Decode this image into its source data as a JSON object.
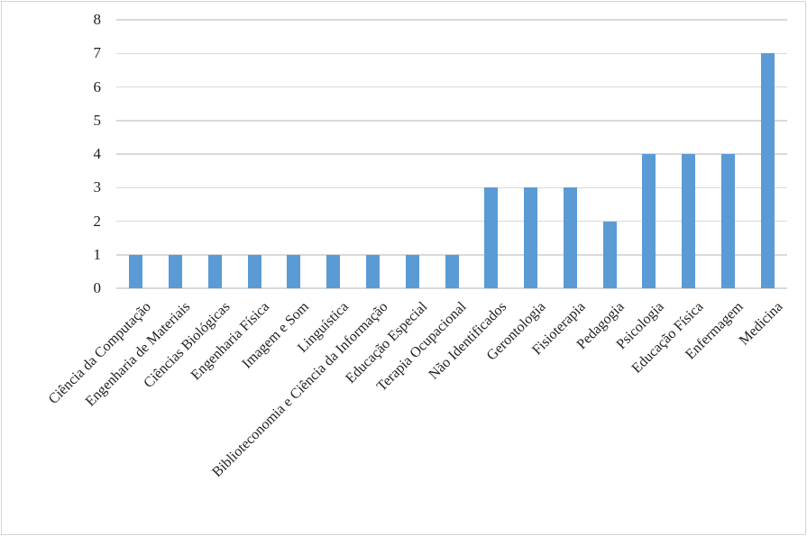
{
  "chart_data": {
    "type": "bar",
    "categories": [
      "Ciência da Computação",
      "Engenharia de Materiais",
      "Ciências Biológicas",
      "Engenharia Física",
      "Imagem e Som",
      "Linguística",
      "Biblioteconomia e Ciência da Informação",
      "Educação Especial",
      "Terapia Ocupacional",
      "Não Identificados",
      "Gerontologia",
      "Fisioterapia",
      "Pedagogia",
      "Psicologia",
      "Educação Física",
      "Enfermagem",
      "Medicina"
    ],
    "values": [
      1,
      1,
      1,
      1,
      1,
      1,
      1,
      1,
      1,
      3,
      3,
      3,
      2,
      4,
      4,
      4,
      7
    ],
    "yticks": [
      0,
      1,
      2,
      3,
      4,
      5,
      6,
      7,
      8
    ],
    "ylim": [
      0,
      8
    ],
    "grid": true,
    "legend": false,
    "x_label_rotation_deg": 45,
    "bar_color": "#5B9BD5",
    "gridline_color": "#D9D9D9",
    "text_color": "#1F1F1F",
    "frame_border_color": "#D6D6D6",
    "background_color": "#FFFFFF"
  }
}
